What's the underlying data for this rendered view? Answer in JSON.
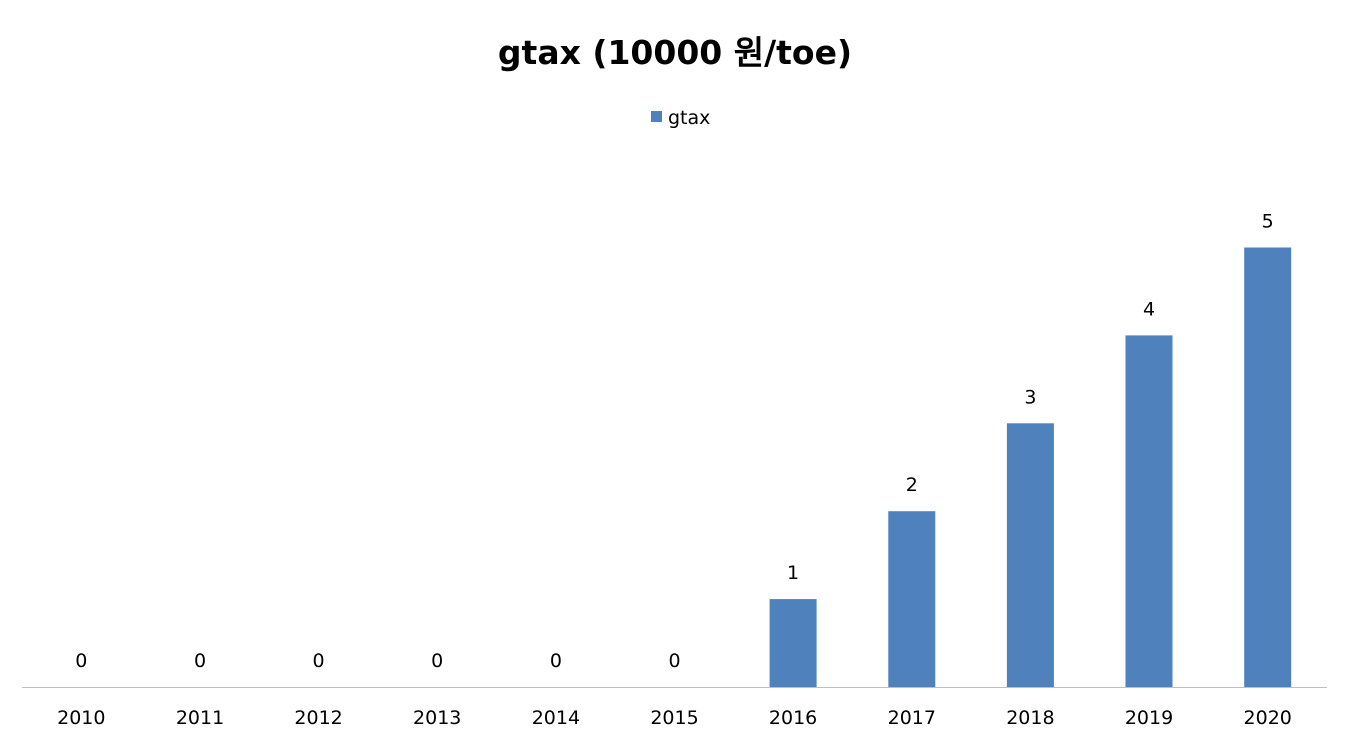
{
  "chart_data": {
    "type": "bar",
    "title": "gtax (10000 원/toe)",
    "xlabel": "",
    "ylabel": "",
    "categories": [
      "2010",
      "2011",
      "2012",
      "2013",
      "2014",
      "2015",
      "2016",
      "2017",
      "2018",
      "2019",
      "2020"
    ],
    "series": [
      {
        "name": "gtax",
        "values": [
          0,
          0,
          0,
          0,
          0,
          0,
          1,
          2,
          3,
          4,
          5
        ],
        "data_labels": [
          "0",
          "0",
          "0",
          "0",
          "0",
          "0",
          "1",
          "2",
          "3",
          "4",
          "5"
        ],
        "color": "#4F81BD"
      }
    ],
    "ylim": [
      0,
      5
    ],
    "grid": false,
    "y_axis_visible": false,
    "legend_position": "top"
  }
}
